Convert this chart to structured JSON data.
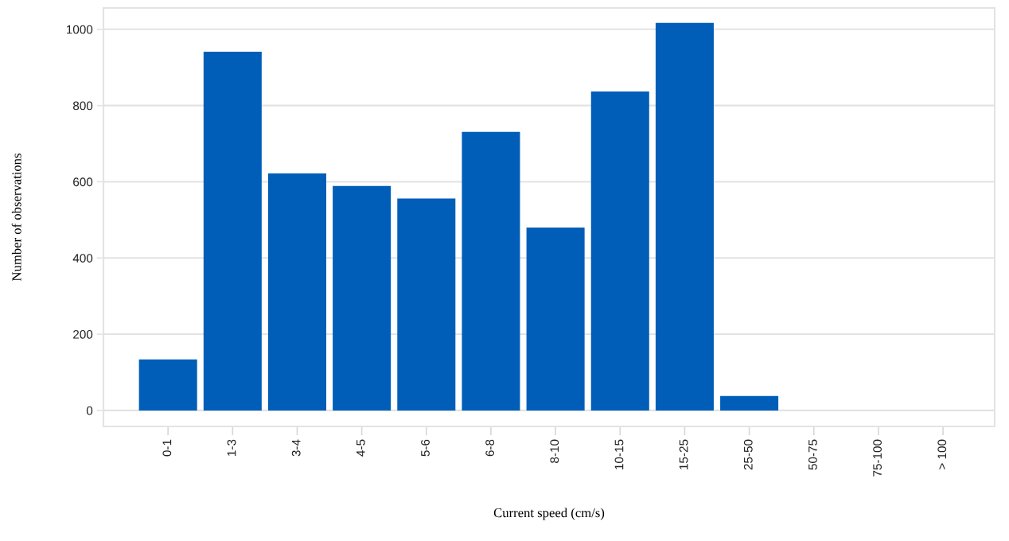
{
  "chart_data": {
    "type": "bar",
    "xlabel": "Current speed (cm/s)",
    "ylabel": "Number of observations",
    "categories": [
      "0-1",
      "1-3",
      "3-4",
      "4-5",
      "5-6",
      "6-8",
      "8-10",
      "10-15",
      "15-25",
      "25-50",
      "50-75",
      "75-100",
      "> 100"
    ],
    "values": [
      134,
      941,
      622,
      589,
      556,
      731,
      480,
      837,
      1017,
      38,
      0,
      0,
      0
    ],
    "color": "#005eb8",
    "ylim": [
      -42,
      1056
    ],
    "yticks": [
      0,
      200,
      400,
      600,
      800,
      1000
    ],
    "grid": "y"
  }
}
